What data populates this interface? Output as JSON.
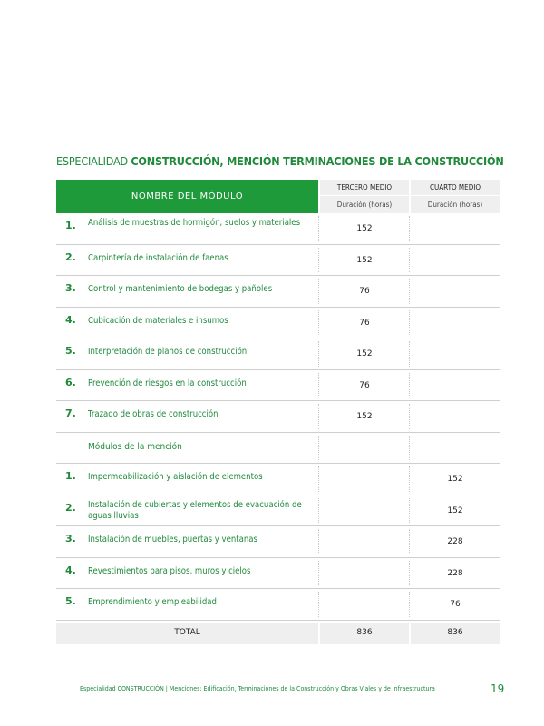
{
  "title": {
    "prefix": "ESPECIALIDAD",
    "bold": "CONSTRUCCIÓN, MENCIÓN TERMINACIONES DE LA CONSTRUCCIÓN"
  },
  "header": {
    "name_col": "NOMBRE DEL MÓDULO",
    "col3_level": "TERCERO MEDIO",
    "col3_dur": "Duración (horas)",
    "col4_level": "CUARTO MEDIO",
    "col4_dur": "Duración (horas)"
  },
  "modules": [
    {
      "num": "1.",
      "name": "Análisis de muestras de hormigón, suelos y materiales",
      "tercero": "152",
      "cuarto": ""
    },
    {
      "num": "2.",
      "name": "Carpintería de instalación de faenas",
      "tercero": "152",
      "cuarto": ""
    },
    {
      "num": "3.",
      "name": "Control y mantenimiento de bodegas y pañoles",
      "tercero": "76",
      "cuarto": ""
    },
    {
      "num": "4.",
      "name": "Cubicación de materiales e insumos",
      "tercero": "76",
      "cuarto": ""
    },
    {
      "num": "5.",
      "name": "Interpretación de planos de construcción",
      "tercero": "152",
      "cuarto": ""
    },
    {
      "num": "6.",
      "name": "Prevención de riesgos en la construcción",
      "tercero": "76",
      "cuarto": ""
    },
    {
      "num": "7.",
      "name": "Trazado de obras de construcción",
      "tercero": "152",
      "cuarto": ""
    }
  ],
  "mention_heading": "Módulos de la mención",
  "mention_modules": [
    {
      "num": "1.",
      "name": "Impermeabilización y aislación de elementos",
      "tercero": "",
      "cuarto": "152"
    },
    {
      "num": "2.",
      "name": "Instalación de cubiertas y elementos de evacuación de aguas lluvias",
      "tercero": "",
      "cuarto": "152"
    },
    {
      "num": "3.",
      "name": "Instalación de muebles, puertas y ventanas",
      "tercero": "",
      "cuarto": "228"
    },
    {
      "num": "4.",
      "name": "Revestimientos para pisos, muros y cielos",
      "tercero": "",
      "cuarto": "228"
    },
    {
      "num": "5.",
      "name": "Emprendimiento y empleabilidad",
      "tercero": "",
      "cuarto": "76"
    }
  ],
  "total": {
    "label": "TOTAL",
    "tercero": "836",
    "cuarto": "836"
  },
  "footer": "Especialidad CONSTRUCCIÓN | Menciones: Edificación, Terminaciones de la Construcción y Obras Viales y de Infraestructura",
  "page_number": "19",
  "colors": {
    "accent": "#1f9a3b",
    "text_green": "#1f8a3a",
    "header_gray": "#efefef"
  }
}
